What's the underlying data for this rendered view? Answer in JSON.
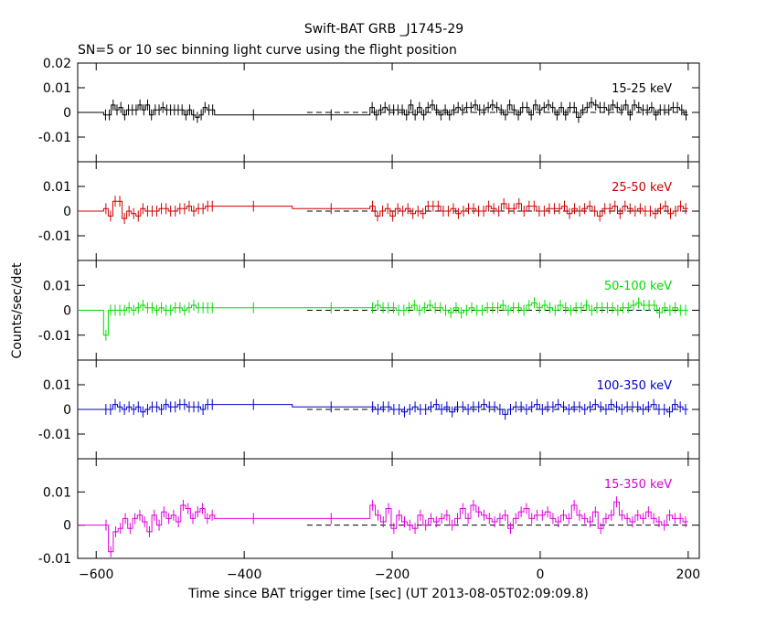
{
  "title": "Swift-BAT GRB _J1745-29",
  "subtitle": "SN=5 or 10 sec binning light curve using the flight position",
  "xlabel": "Time since BAT trigger time [sec] (UT 2013-08-05T02:09:09.8)",
  "ylabel": "Counts/sec/det",
  "colors": {
    "black": "#000000",
    "red": "#cc0000",
    "green": "#00dd00",
    "blue": "#0000cc",
    "magenta": "#dd00dd"
  },
  "chart_data": [
    {
      "type": "line",
      "band": "15-25 keV",
      "color": "#000000",
      "xlim": [
        -625,
        215
      ],
      "ylim": [
        -0.02,
        0.02
      ],
      "yticks": [
        "0.02",
        "0.01",
        "0",
        "-0.01"
      ],
      "xticks": [
        -600,
        -400,
        -200,
        0,
        200
      ],
      "series": [
        {
          "values": [
            -0.001,
            -0.001,
            0.003,
            0.001,
            0.002,
            -0.001,
            0.001,
            0.001,
            0.001,
            0.003,
            0.001,
            0.003,
            -0.001,
            0.001,
            0.001,
            0.002,
            0.001,
            0.001,
            0.001,
            0.001,
            0.001,
            -0.001,
            0.001,
            -0.001,
            -0.002,
            -0.001,
            0.002,
            0.001,
            0.001,
            -0.001,
            -0.001,
            0.002,
            -0.001,
            0.001,
            0.002,
            0.001,
            0.001,
            0.001,
            0.001,
            -0.001,
            0.003,
            -0.001,
            0.002,
            -0.001,
            0.002,
            0.003,
            0.001,
            -0.001,
            0.001,
            -0.001,
            0.001,
            0.002,
            0.001,
            0.002,
            0.002,
            0.003,
            0.001,
            0.001,
            0.002,
            0.003,
            0.002,
            0.001,
            -0.001,
            0.003,
            0.001,
            -0.001,
            0.002,
            0.002,
            -0.001,
            0.003,
            0.001,
            0.002,
            0.003,
            0.002,
            -0.001,
            0.002,
            -0.001,
            0.002,
            0.002,
            -0.002,
            0.001,
            0.002,
            0.004,
            0.003,
            0.002,
            0.002,
            0.001,
            0.003,
            0.002,
            0.001,
            0.003,
            -0.001,
            0.003,
            0.002,
            0.001,
            0.001,
            0.002,
            -0.001,
            0.001,
            0.001,
            0.001,
            0.002,
            0.002,
            0.001,
            -0.001
          ]
        }
      ]
    },
    {
      "type": "line",
      "band": "25-50 keV",
      "color": "#cc0000",
      "xlim": [
        -625,
        215
      ],
      "ylim": [
        -0.02,
        0.02
      ],
      "yticks": [
        "0.01",
        "0",
        "-0.01"
      ],
      "xticks": [
        -600,
        -400,
        -200,
        0,
        200
      ],
      "series": [
        {
          "values": [
            0.001,
            -0.002,
            0.004,
            0.004,
            -0.003,
            0.0,
            -0.001,
            -0.002,
            0.001,
            0.0,
            0.0,
            0.0,
            0.001,
            0.001,
            0.0,
            0.0,
            0.001,
            0.001,
            0.002,
            0.0,
            0.001,
            0.001,
            0.002,
            0.002,
            0.002,
            0.001,
            0.002,
            -0.002,
            0.0,
            0.001,
            -0.002,
            0.001,
            0.0,
            0.001,
            -0.001,
            0.0,
            -0.001,
            0.002,
            0.002,
            0.002,
            0.0,
            0.0,
            0.001,
            -0.001,
            0.0,
            0.001,
            0.001,
            0.0,
            0.0,
            0.002,
            0.001,
            0.0,
            0.003,
            0.001,
            0.001,
            0.003,
            0.0,
            0.002,
            0.002,
            0.0,
            0.0,
            0.001,
            0.001,
            0.001,
            0.002,
            -0.001,
            0.001,
            0.0,
            0.001,
            0.002,
            0.0,
            -0.002,
            0.001,
            0.001,
            0.002,
            -0.001,
            0.002,
            0.001,
            0.0,
            0.001,
            0.0,
            0.0,
            -0.001,
            0.001,
            0.002,
            -0.001,
            0.0,
            0.002,
            0.001
          ]
        }
      ]
    },
    {
      "type": "line",
      "band": "50-100 keV",
      "color": "#00dd00",
      "xlim": [
        -625,
        215
      ],
      "ylim": [
        -0.02,
        0.02
      ],
      "yticks": [
        "0.01",
        "0",
        "-0.01"
      ],
      "xticks": [
        -600,
        -400,
        -200,
        0,
        200
      ],
      "series": [
        {
          "values": [
            -0.01,
            0.0,
            0.0,
            0.0,
            0.0,
            0.001,
            0.0,
            0.001,
            0.002,
            0.001,
            0.001,
            0.0,
            0.001,
            0.0,
            0.0,
            0.001,
            0.001,
            0.0,
            0.001,
            0.002,
            0.001,
            0.001,
            0.001,
            0.001,
            0.001,
            0.001,
            0.001,
            0.002,
            0.001,
            0.001,
            0.001,
            0.0,
            0.0,
            0.001,
            0.002,
            0.0,
            0.001,
            0.002,
            0.001,
            0.001,
            0.0,
            -0.001,
            0.001,
            -0.001,
            0.0,
            0.001,
            0.0,
            0.0,
            0.001,
            0.001,
            0.001,
            0.002,
            0.0,
            0.001,
            0.001,
            0.0,
            0.002,
            0.003,
            0.001,
            0.002,
            0.001,
            0.0,
            0.002,
            0.001,
            0.0,
            0.001,
            0.001,
            0.002,
            0.0,
            0.001,
            0.001,
            0.001,
            0.001,
            0.0,
            0.001,
            0.001,
            0.002,
            0.003,
            0.002,
            0.002,
            0.002,
            -0.001,
            0.001,
            0.0,
            0.001,
            0.0,
            0.0
          ]
        }
      ]
    },
    {
      "type": "line",
      "band": "100-350 keV",
      "color": "#0000cc",
      "xlim": [
        -625,
        215
      ],
      "ylim": [
        -0.02,
        0.02
      ],
      "yticks": [
        "0.01",
        "0",
        "-0.01"
      ],
      "xticks": [
        -600,
        -400,
        -200,
        0,
        200
      ],
      "series": [
        {
          "values": [
            0.0,
            0.0,
            0.002,
            0.001,
            0.0,
            0.001,
            0.0,
            0.001,
            -0.001,
            0.0,
            0.001,
            0.001,
            0.0,
            0.002,
            0.001,
            0.001,
            0.002,
            0.002,
            0.001,
            0.001,
            0.001,
            0.0,
            0.002,
            0.002,
            0.002,
            0.001,
            0.001,
            0.0,
            0.001,
            0.001,
            0.0,
            0.0,
            -0.001,
            0.0,
            0.001,
            0.0,
            0.0,
            0.001,
            0.002,
            0.0,
            0.001,
            -0.001,
            0.001,
            0.001,
            0.0,
            0.001,
            0.001,
            0.002,
            0.001,
            0.001,
            0.0,
            -0.002,
            0.0,
            0.001,
            0.001,
            0.0,
            0.001,
            0.002,
            0.0,
            0.001,
            0.001,
            0.002,
            0.001,
            0.0,
            0.001,
            0.001,
            0.0,
            0.001,
            0.002,
            0.001,
            0.0,
            0.002,
            0.001,
            0.0,
            0.001,
            0.001,
            0.001,
            0.0,
            0.001,
            0.002,
            0.0,
            0.0,
            -0.001,
            0.002,
            0.001,
            0.0
          ]
        }
      ]
    },
    {
      "type": "line",
      "band": "15-350 keV",
      "color": "#dd00dd",
      "xlim": [
        -625,
        215
      ],
      "ylim": [
        -0.01,
        0.02
      ],
      "yticks": [
        "0.01",
        "0",
        "-0.01"
      ],
      "xticks": [
        -600,
        -400,
        -200,
        0,
        200
      ],
      "series": [
        {
          "values": [
            0.0,
            -0.008,
            -0.002,
            -0.001,
            0.002,
            -0.001,
            0.002,
            0.003,
            0.001,
            -0.002,
            0.003,
            0.0,
            0.004,
            0.002,
            0.003,
            0.001,
            0.006,
            0.005,
            0.002,
            0.004,
            0.005,
            0.002,
            0.003,
            0.002,
            0.002,
            0.006,
            0.003,
            0.001,
            0.005,
            -0.001,
            0.003,
            0.001,
            0.0,
            -0.001,
            0.003,
            0.0,
            0.002,
            0.001,
            0.002,
            0.003,
            0.0,
            0.002,
            0.005,
            0.002,
            0.006,
            0.004,
            0.003,
            0.002,
            0.001,
            0.002,
            0.003,
            -0.001,
            0.002,
            0.004,
            0.005,
            0.002,
            0.003,
            0.003,
            0.004,
            0.002,
            0.001,
            0.003,
            0.002,
            0.006,
            0.003,
            0.002,
            0.001,
            0.004,
            -0.001,
            0.002,
            0.003,
            0.007,
            0.003,
            0.002,
            0.001,
            0.003,
            0.002,
            0.004,
            0.002,
            0.001,
            0.0,
            0.003,
            0.002,
            0.002,
            0.001
          ]
        }
      ]
    }
  ]
}
